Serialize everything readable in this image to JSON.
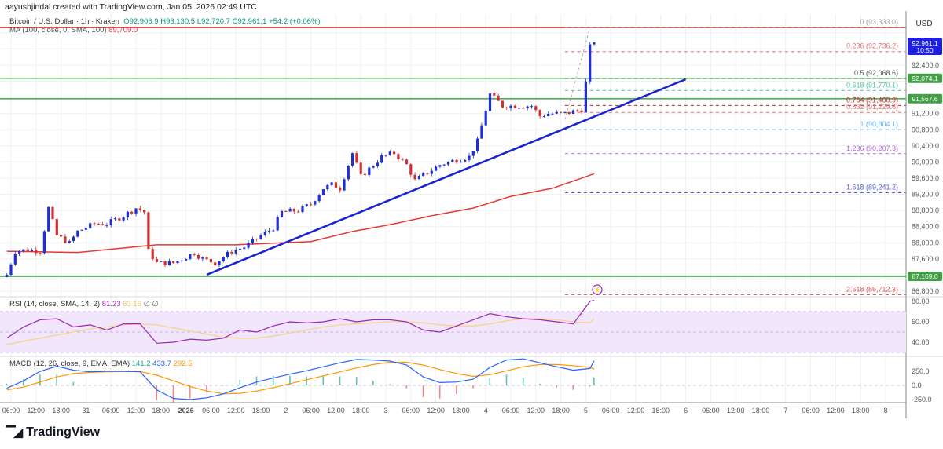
{
  "header": {
    "credit": "aayushjindal created with TradingView.com, Jan 05, 2026 02:49 UTC"
  },
  "legend": {
    "symbol": "Bitcoin / U.S. Dollar · 1h · Kraken",
    "ohlc": "O92,906.9  H93,130.5  L92,720.7  C92,961.1  +54.2 (+0.06%)",
    "ma_label": "MA (100, close, 0, SMA, 100)",
    "ma_value": "89,709.0"
  },
  "rsi_legend": {
    "label": "RSI (14, close, SMA, 14, 2)",
    "rsi": "81.23",
    "signal": "63.16",
    "extra": "∅ ∅"
  },
  "macd_legend": {
    "label": "MACD (12, 26, close, 9, EMA, EMA)",
    "hist": "141.2",
    "macd": "433.7",
    "signal": "292.5"
  },
  "currency": "USD",
  "last_price": {
    "price": "92,961.1",
    "countdown": "10:50"
  },
  "level_labels": [
    "92,074.1",
    "91,567.6",
    "87,169.0"
  ],
  "colors": {
    "up": "#1f2fd6",
    "down": "#d32f2f",
    "ma": "#e53935",
    "trendline": "#1a23d0",
    "level": "#4caf50",
    "resistance": "#e53935",
    "rsi": "#9c27b0",
    "rsi_signal": "#f5d58a",
    "macd": "#2962ff",
    "macd_signal": "#ff9800",
    "hist_up": "#26a69a",
    "hist_down": "#ef5350"
  },
  "price_axis": [
    "92,400.0",
    "91,200.0",
    "90,800.0",
    "90,400.0",
    "90,000.0",
    "89,600.0",
    "89,200.0",
    "88,800.0",
    "88,400.0",
    "88,000.0",
    "87,600.0",
    "86,800.0"
  ],
  "rsi_axis": [
    "80.00",
    "60.00",
    "40.00"
  ],
  "macd_axis": [
    "250.0",
    "0.0",
    "-250.0"
  ],
  "time_axis": [
    "06:00",
    "12:00",
    "18:00",
    "31",
    "06:00",
    "12:00",
    "18:00",
    "2026",
    "06:00",
    "12:00",
    "18:00",
    "2",
    "06:00",
    "12:00",
    "18:00",
    "3",
    "06:00",
    "12:00",
    "18:00",
    "4",
    "06:00",
    "12:00",
    "18:00",
    "5",
    "06:00",
    "12:00",
    "18:00",
    "6",
    "06:00",
    "12:00",
    "18:00",
    "7",
    "06:00",
    "12:00",
    "18:00",
    "8"
  ],
  "fib_levels": [
    {
      "label": "0 (93,333.0)",
      "price": 93333.0,
      "color": "#9e9e9e"
    },
    {
      "label": "0.236 (92,736.2)",
      "price": 92736.2,
      "color": "#e57373"
    },
    {
      "label": "0.5 (92,068.6)",
      "price": 92068.6,
      "color": "#555555"
    },
    {
      "label": "0.618 (91,770.1)",
      "price": 91770.1,
      "color": "#4dc9a8"
    },
    {
      "label": "0.764 (91,400.9)",
      "price": 91400.9,
      "color": "#c62828"
    },
    {
      "label": "0.832 (91,229.6)",
      "price": 91229.6,
      "color": "#e57373"
    },
    {
      "label": "1 (90,804.1)",
      "price": 90804.1,
      "color": "#64b5f6"
    },
    {
      "label": "1.236 (90,207.3)",
      "price": 90207.3,
      "color": "#b16ad6"
    },
    {
      "label": "1.618 (89,241.2)",
      "price": 89241.2,
      "color": "#5c5fd6"
    },
    {
      "label": "2.618 (86,712.3)",
      "price": 86712.3,
      "color": "#e05555"
    }
  ],
  "chart_data": {
    "type": "candlestick",
    "interval": "1h",
    "ylim": [
      86600,
      93500
    ],
    "close_keypoints": [
      [
        "2025-12-30T05:00",
        87210
      ],
      [
        "2025-12-30T07:00",
        87790
      ],
      [
        "2025-12-30T10:00",
        87830
      ],
      [
        "2025-12-30T13:00",
        87800
      ],
      [
        "2025-12-30T15:00",
        88860
      ],
      [
        "2025-12-30T17:00",
        88180
      ],
      [
        "2025-12-30T20:00",
        87990
      ],
      [
        "2025-12-30T22:00",
        88280
      ],
      [
        "2025-12-31T02:00",
        88470
      ],
      [
        "2025-12-31T05:00",
        88470
      ],
      [
        "2025-12-31T09:00",
        88670
      ],
      [
        "2025-12-31T12:00",
        88860
      ],
      [
        "2025-12-31T14:00",
        88760
      ],
      [
        "2025-12-31T15:00",
        87790
      ],
      [
        "2025-12-31T17:00",
        87500
      ],
      [
        "2025-12-31T21:00",
        87500
      ],
      [
        "2026-01-01T02:00",
        87750
      ],
      [
        "2026-01-01T04:00",
        87600
      ],
      [
        "2026-01-01T07:00",
        87500
      ],
      [
        "2026-01-01T11:00",
        87790
      ],
      [
        "2026-01-01T14:00",
        87890
      ],
      [
        "2026-01-01T18:00",
        88180
      ],
      [
        "2026-01-01T21:00",
        88370
      ],
      [
        "2026-01-01T23:00",
        88760
      ],
      [
        "2026-01-02T03:00",
        88800
      ],
      [
        "2026-01-02T06:00",
        88960
      ],
      [
        "2026-01-02T09:00",
        89350
      ],
      [
        "2026-01-02T11:00",
        89440
      ],
      [
        "2026-01-02T13:00",
        89350
      ],
      [
        "2026-01-02T16:00",
        90220
      ],
      [
        "2026-01-02T18:00",
        89640
      ],
      [
        "2026-01-02T20:00",
        89830
      ],
      [
        "2026-01-02T23:00",
        90130
      ],
      [
        "2026-01-03T02:00",
        90220
      ],
      [
        "2026-01-03T05:00",
        89930
      ],
      [
        "2026-01-03T07:00",
        89540
      ],
      [
        "2026-01-03T10:00",
        89740
      ],
      [
        "2026-01-03T13:00",
        89930
      ],
      [
        "2026-01-03T16:00",
        90030
      ],
      [
        "2026-01-03T20:00",
        90130
      ],
      [
        "2026-01-03T22:00",
        90510
      ],
      [
        "2026-01-04T01:00",
        91680
      ],
      [
        "2026-01-04T04:00",
        91390
      ],
      [
        "2026-01-04T08:00",
        91390
      ],
      [
        "2026-01-04T11:00",
        91390
      ],
      [
        "2026-01-04T13:00",
        91140
      ],
      [
        "2026-01-04T15:00",
        91200
      ],
      [
        "2026-01-04T19:00",
        91200
      ],
      [
        "2026-01-04T23:00",
        91300
      ],
      [
        "2026-01-05T00:00",
        91970
      ],
      [
        "2026-01-05T01:00",
        92850
      ],
      [
        "2026-01-05T02:00",
        92961.1
      ]
    ],
    "ma100_keypoints": [
      [
        "2025-12-30T05:00",
        87790
      ],
      [
        "2025-12-30T22:00",
        87760
      ],
      [
        "2025-12-31T17:00",
        87950
      ],
      [
        "2026-01-01T12:00",
        87950
      ],
      [
        "2026-01-02T06:00",
        88030
      ],
      [
        "2026-01-02T16:00",
        88280
      ],
      [
        "2026-01-03T02:00",
        88470
      ],
      [
        "2026-01-03T11:00",
        88670
      ],
      [
        "2026-01-03T21:00",
        88860
      ],
      [
        "2026-01-04T06:00",
        89150
      ],
      [
        "2026-01-04T16:00",
        89350
      ],
      [
        "2026-01-05T02:00",
        89709
      ]
    ],
    "trendline": [
      [
        "2026-01-01T05:00",
        87210
      ],
      [
        "2026-01-06T00:00",
        92050
      ]
    ],
    "fib_anchor": [
      [
        "2026-01-04T19:00",
        91050
      ],
      [
        "2026-01-05T01:00",
        93333
      ]
    ],
    "horizontal_levels": [
      93333.0,
      92074.1,
      91567.6,
      87169.0
    ],
    "rsi": {
      "interval": "4h",
      "start": "2025-12-30T05:00",
      "values": [
        44,
        55,
        62,
        63,
        55,
        57,
        52,
        58,
        58,
        39,
        40,
        43,
        42,
        44,
        52,
        50,
        56,
        60,
        59,
        60,
        63,
        60,
        62,
        62,
        60,
        52,
        50,
        56,
        62,
        68,
        65,
        63,
        62,
        60,
        58,
        80,
        81.23
      ],
      "signal": [
        38,
        41,
        44,
        47,
        50,
        53,
        55,
        57,
        58,
        57,
        54,
        51,
        48,
        45,
        44,
        44,
        46,
        49,
        52,
        55,
        57,
        58,
        59,
        60,
        60,
        59,
        57,
        56,
        56,
        58,
        61,
        63,
        63,
        62,
        60,
        59,
        63.16
      ],
      "band": [
        30,
        70
      ],
      "ylim": [
        20,
        90
      ]
    },
    "macd": {
      "interval": "4h",
      "start": "2025-12-30T05:00",
      "values": [
        -50,
        80,
        250,
        340,
        270,
        240,
        250,
        250,
        240,
        -80,
        -230,
        -250,
        -220,
        -150,
        -40,
        60,
        130,
        200,
        260,
        330,
        400,
        460,
        450,
        430,
        360,
        150,
        50,
        60,
        110,
        320,
        450,
        470,
        400,
        330,
        270,
        300,
        433.7
      ],
      "signal": [
        -80,
        -30,
        60,
        150,
        210,
        230,
        240,
        245,
        245,
        180,
        80,
        -20,
        -100,
        -150,
        -140,
        -100,
        -40,
        30,
        100,
        170,
        240,
        310,
        370,
        410,
        410,
        360,
        280,
        210,
        160,
        190,
        260,
        330,
        370,
        370,
        350,
        320,
        292.5
      ]
    }
  },
  "brand": "TradingView"
}
